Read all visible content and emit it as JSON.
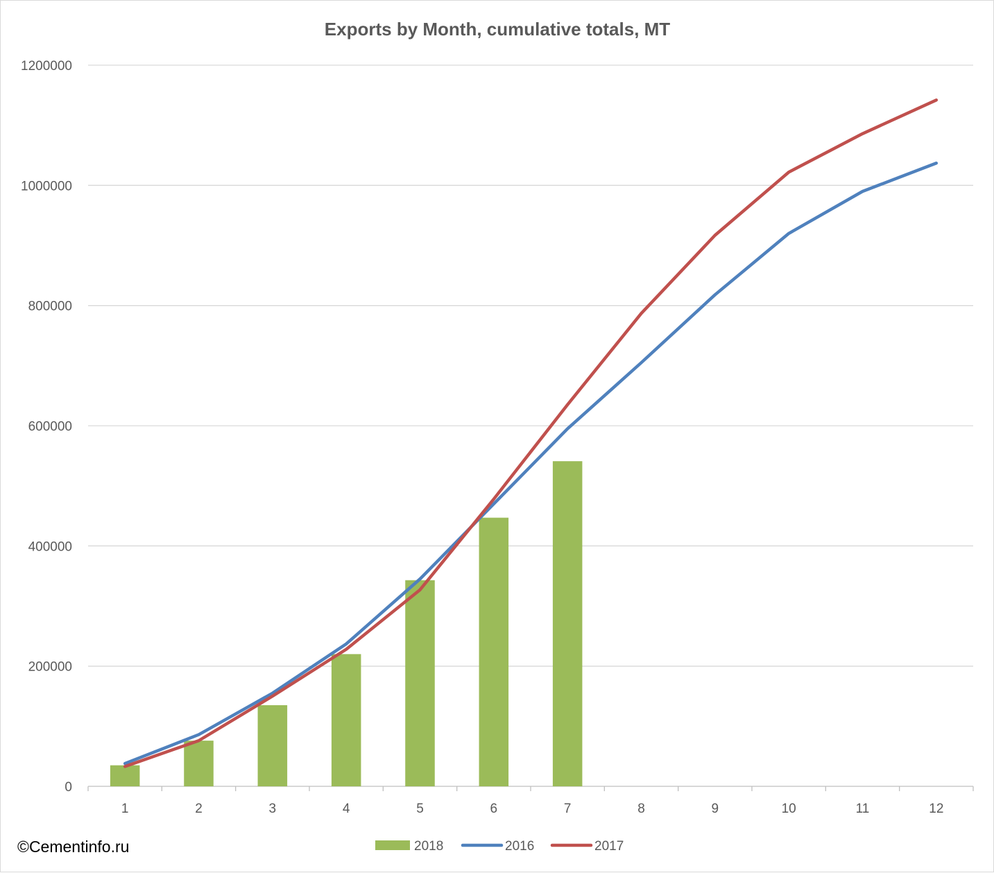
{
  "chart_data": {
    "type": "bar",
    "title": "Exports by Month, cumulative totals, MT",
    "xlabel": "",
    "ylabel": "",
    "categories": [
      "1",
      "2",
      "3",
      "4",
      "5",
      "6",
      "7",
      "8",
      "9",
      "10",
      "11",
      "12"
    ],
    "ylim": [
      0,
      1200000
    ],
    "yticks": [
      "0",
      "200000",
      "400000",
      "600000",
      "800000",
      "1000000",
      "1200000"
    ],
    "grid": "horizontal",
    "legend_position": "bottom",
    "series": [
      {
        "name": "2018",
        "kind": "bar",
        "color": "#9bbb59",
        "values": [
          35000,
          76000,
          135000,
          220000,
          343000,
          447000,
          541000,
          null,
          null,
          null,
          null,
          null
        ]
      },
      {
        "name": "2016",
        "kind": "line",
        "color": "#4f81bd",
        "values": [
          38000,
          86000,
          155000,
          237000,
          345000,
          470000,
          595000,
          705000,
          818000,
          920000,
          990000,
          1037000
        ]
      },
      {
        "name": "2017",
        "kind": "line",
        "color": "#c0504d",
        "values": [
          33000,
          76000,
          150000,
          228000,
          327000,
          478000,
          635000,
          787000,
          917000,
          1022000,
          1086000,
          1142000
        ]
      }
    ]
  },
  "watermark": "©Cementinfo.ru"
}
